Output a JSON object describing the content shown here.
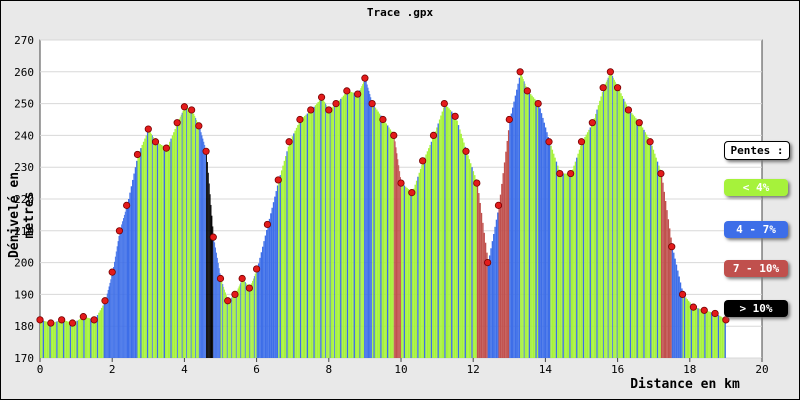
{
  "title": "Trace .gpx",
  "chart_data": {
    "type": "area",
    "title": "Trace .gpx",
    "xlabel": "Distance en km",
    "ylabel": "Dénivelé en metres",
    "xlim": [
      0,
      20
    ],
    "ylim": [
      170,
      270
    ],
    "xticks": [
      "0",
      "2",
      "4",
      "6",
      "8",
      "10",
      "12",
      "14",
      "16",
      "18",
      "20"
    ],
    "yticks": [
      "170",
      "180",
      "190",
      "200",
      "210",
      "220",
      "230",
      "240",
      "250",
      "260",
      "270"
    ],
    "grid": true,
    "legend_position": "right",
    "legend": {
      "title": "Pentes :",
      "entries": [
        {
          "label": "< 4%",
          "color": "#a6f23b",
          "text_color": "#ffffff"
        },
        {
          "label": "4 - 7%",
          "color": "#3d6ee8",
          "text_color": "#ffffff"
        },
        {
          "label": "7 - 10%",
          "color": "#c0504d",
          "text_color": "#ffffff"
        },
        {
          "label": "> 10%",
          "color": "#000000",
          "text_color": "#ffffff"
        }
      ]
    },
    "x": [
      0,
      0.3,
      0.6,
      0.9,
      1.2,
      1.5,
      1.8,
      2.0,
      2.2,
      2.4,
      2.7,
      3.0,
      3.2,
      3.5,
      3.8,
      4.0,
      4.2,
      4.4,
      4.6,
      4.8,
      5.0,
      5.2,
      5.4,
      5.6,
      5.8,
      6.0,
      6.3,
      6.6,
      6.9,
      7.2,
      7.5,
      7.8,
      8.0,
      8.2,
      8.5,
      8.8,
      9.0,
      9.2,
      9.5,
      9.8,
      10.0,
      10.3,
      10.6,
      10.9,
      11.2,
      11.5,
      11.8,
      12.1,
      12.4,
      12.7,
      13.0,
      13.3,
      13.5,
      13.8,
      14.1,
      14.4,
      14.7,
      15.0,
      15.3,
      15.6,
      15.8,
      16.0,
      16.3,
      16.6,
      16.9,
      17.2,
      17.5,
      17.8,
      18.1,
      18.4,
      18.7,
      19.0
    ],
    "y": [
      182,
      181,
      182,
      181,
      183,
      182,
      188,
      197,
      210,
      218,
      234,
      242,
      238,
      236,
      244,
      249,
      248,
      243,
      235,
      208,
      195,
      188,
      190,
      195,
      192,
      198,
      212,
      226,
      238,
      245,
      248,
      252,
      248,
      250,
      254,
      253,
      258,
      250,
      245,
      240,
      225,
      222,
      232,
      240,
      250,
      246,
      235,
      225,
      200,
      218,
      245,
      260,
      254,
      250,
      238,
      228,
      228,
      238,
      244,
      255,
      260,
      255,
      248,
      244,
      238,
      228,
      205,
      190,
      186,
      185,
      184,
      182
    ]
  }
}
